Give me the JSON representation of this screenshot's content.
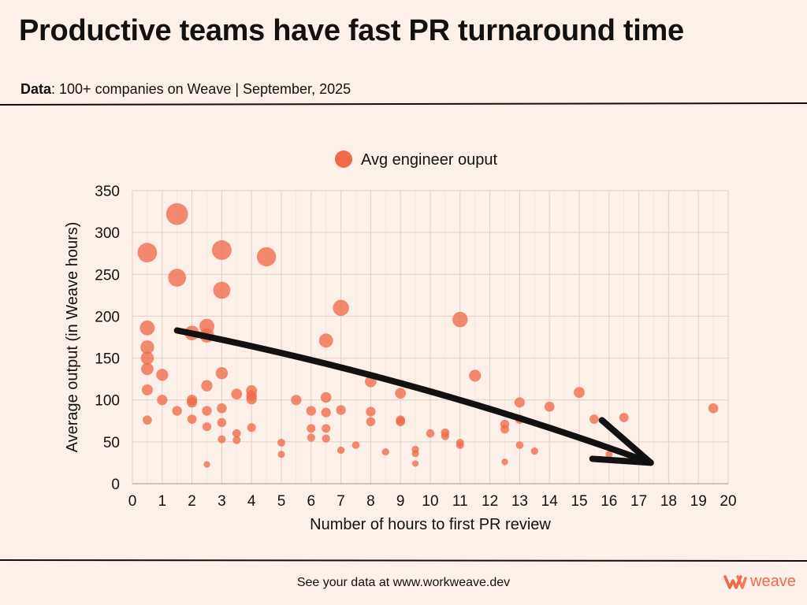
{
  "header": {
    "title": "Productive teams have fast PR turnaround time",
    "subtitle_label": "Data",
    "subtitle_text": ": 100+ companies on Weave | September, 2025"
  },
  "footer": {
    "text": "See your data at www.workweave.dev",
    "brand_name": "weave",
    "brand_icon": "weave-logo-icon"
  },
  "colors": {
    "background": "#fdf0e8",
    "bubble": "#ee6a4a",
    "grid": "#e0cfc4",
    "arrow": "#111111"
  },
  "chart_data": {
    "type": "scatter",
    "xlabel": "Number of hours to first PR review",
    "ylabel": "Average output (in Weave hours)",
    "xlim": [
      0,
      20
    ],
    "ylim": [
      0,
      350
    ],
    "x_ticks": [
      0,
      1,
      2,
      3,
      4,
      5,
      6,
      7,
      8,
      9,
      10,
      11,
      12,
      13,
      14,
      15,
      16,
      17,
      18,
      19,
      20
    ],
    "y_ticks": [
      0,
      50,
      100,
      150,
      200,
      250,
      300,
      350
    ],
    "grid": true,
    "legend": {
      "placement": "top-center",
      "entries": [
        "Avg engineer ouput"
      ]
    },
    "series": [
      {
        "name": "Avg engineer ouput",
        "points": [
          {
            "x": 0.5,
            "y": 276,
            "size": 276
          },
          {
            "x": 0.5,
            "y": 186,
            "size": 186
          },
          {
            "x": 0.5,
            "y": 163,
            "size": 163
          },
          {
            "x": 0.5,
            "y": 150,
            "size": 150
          },
          {
            "x": 0.5,
            "y": 137,
            "size": 137
          },
          {
            "x": 0.5,
            "y": 112,
            "size": 112
          },
          {
            "x": 0.5,
            "y": 76,
            "size": 76
          },
          {
            "x": 1,
            "y": 130,
            "size": 130
          },
          {
            "x": 1,
            "y": 100,
            "size": 100
          },
          {
            "x": 1.5,
            "y": 322,
            "size": 322
          },
          {
            "x": 1.5,
            "y": 246,
            "size": 246
          },
          {
            "x": 1.5,
            "y": 87,
            "size": 87
          },
          {
            "x": 2,
            "y": 180,
            "size": 180
          },
          {
            "x": 2,
            "y": 100,
            "size": 100
          },
          {
            "x": 2,
            "y": 97,
            "size": 97
          },
          {
            "x": 2,
            "y": 77,
            "size": 77
          },
          {
            "x": 2.5,
            "y": 188,
            "size": 188
          },
          {
            "x": 2.5,
            "y": 177,
            "size": 177
          },
          {
            "x": 2.5,
            "y": 117,
            "size": 117
          },
          {
            "x": 2.5,
            "y": 87,
            "size": 87
          },
          {
            "x": 2.5,
            "y": 68,
            "size": 68
          },
          {
            "x": 2.5,
            "y": 23,
            "size": 23
          },
          {
            "x": 3,
            "y": 279,
            "size": 279
          },
          {
            "x": 3,
            "y": 231,
            "size": 231
          },
          {
            "x": 3,
            "y": 132,
            "size": 132
          },
          {
            "x": 3,
            "y": 90,
            "size": 90
          },
          {
            "x": 3,
            "y": 73,
            "size": 73
          },
          {
            "x": 3,
            "y": 53,
            "size": 53
          },
          {
            "x": 3.5,
            "y": 107,
            "size": 107
          },
          {
            "x": 3.5,
            "y": 60,
            "size": 60
          },
          {
            "x": 3.5,
            "y": 52,
            "size": 52
          },
          {
            "x": 4,
            "y": 111,
            "size": 111
          },
          {
            "x": 4,
            "y": 105,
            "size": 105
          },
          {
            "x": 4,
            "y": 101,
            "size": 101
          },
          {
            "x": 4,
            "y": 67,
            "size": 67
          },
          {
            "x": 4.5,
            "y": 271,
            "size": 271
          },
          {
            "x": 5,
            "y": 49,
            "size": 49
          },
          {
            "x": 5,
            "y": 35,
            "size": 35
          },
          {
            "x": 5.5,
            "y": 100,
            "size": 100
          },
          {
            "x": 6,
            "y": 87,
            "size": 87
          },
          {
            "x": 6,
            "y": 66,
            "size": 66
          },
          {
            "x": 6,
            "y": 55,
            "size": 55
          },
          {
            "x": 6.5,
            "y": 171,
            "size": 171
          },
          {
            "x": 6.5,
            "y": 103,
            "size": 103
          },
          {
            "x": 6.5,
            "y": 85,
            "size": 85
          },
          {
            "x": 6.5,
            "y": 66,
            "size": 66
          },
          {
            "x": 6.5,
            "y": 54,
            "size": 54
          },
          {
            "x": 7,
            "y": 210,
            "size": 210
          },
          {
            "x": 7,
            "y": 88,
            "size": 88
          },
          {
            "x": 7,
            "y": 40,
            "size": 40
          },
          {
            "x": 7.5,
            "y": 46,
            "size": 46
          },
          {
            "x": 8,
            "y": 122,
            "size": 122
          },
          {
            "x": 8,
            "y": 86,
            "size": 86
          },
          {
            "x": 8,
            "y": 74,
            "size": 74
          },
          {
            "x": 8.5,
            "y": 38,
            "size": 38
          },
          {
            "x": 9,
            "y": 108,
            "size": 108
          },
          {
            "x": 9,
            "y": 76,
            "size": 76
          },
          {
            "x": 9,
            "y": 74,
            "size": 74
          },
          {
            "x": 9.5,
            "y": 41,
            "size": 41
          },
          {
            "x": 9.5,
            "y": 36,
            "size": 36
          },
          {
            "x": 9.5,
            "y": 24,
            "size": 24
          },
          {
            "x": 10,
            "y": 60,
            "size": 60
          },
          {
            "x": 10.5,
            "y": 61,
            "size": 61
          },
          {
            "x": 10.5,
            "y": 57,
            "size": 57
          },
          {
            "x": 11,
            "y": 196,
            "size": 196
          },
          {
            "x": 11,
            "y": 49,
            "size": 49
          },
          {
            "x": 11,
            "y": 46,
            "size": 46
          },
          {
            "x": 11.5,
            "y": 129,
            "size": 129
          },
          {
            "x": 12.5,
            "y": 71,
            "size": 71
          },
          {
            "x": 12.5,
            "y": 65,
            "size": 65
          },
          {
            "x": 12.5,
            "y": 26,
            "size": 26
          },
          {
            "x": 13,
            "y": 97,
            "size": 97
          },
          {
            "x": 13,
            "y": 77,
            "size": 77
          },
          {
            "x": 13,
            "y": 46,
            "size": 46
          },
          {
            "x": 13.5,
            "y": 39,
            "size": 39
          },
          {
            "x": 14,
            "y": 92,
            "size": 92
          },
          {
            "x": 15,
            "y": 109,
            "size": 109
          },
          {
            "x": 15.5,
            "y": 77,
            "size": 77
          },
          {
            "x": 16,
            "y": 35,
            "size": 35
          },
          {
            "x": 16.5,
            "y": 79,
            "size": 79
          },
          {
            "x": 19.5,
            "y": 90,
            "size": 90
          }
        ]
      }
    ],
    "trend_arrow": {
      "from": {
        "x": 1.5,
        "y": 183
      },
      "to": {
        "x": 17.4,
        "y": 25
      }
    }
  }
}
